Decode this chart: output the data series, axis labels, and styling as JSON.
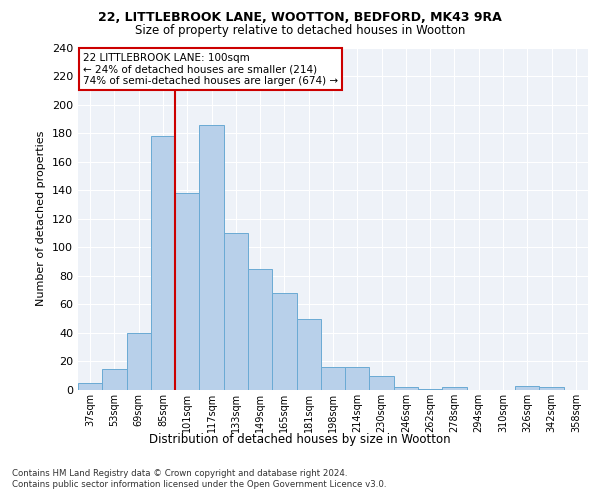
{
  "title1": "22, LITTLEBROOK LANE, WOOTTON, BEDFORD, MK43 9RA",
  "title2": "Size of property relative to detached houses in Wootton",
  "xlabel": "Distribution of detached houses by size in Wootton",
  "ylabel": "Number of detached properties",
  "categories": [
    "37sqm",
    "53sqm",
    "69sqm",
    "85sqm",
    "101sqm",
    "117sqm",
    "133sqm",
    "149sqm",
    "165sqm",
    "181sqm",
    "198sqm",
    "214sqm",
    "230sqm",
    "246sqm",
    "262sqm",
    "278sqm",
    "294sqm",
    "310sqm",
    "326sqm",
    "342sqm",
    "358sqm"
  ],
  "values": [
    5,
    15,
    40,
    178,
    138,
    186,
    110,
    85,
    68,
    50,
    16,
    16,
    10,
    2,
    1,
    2,
    0,
    0,
    3,
    2,
    0
  ],
  "bar_color": "#b8d0ea",
  "bar_edge_color": "#6aaad4",
  "vline_color": "#cc0000",
  "annotation_text": "22 LITTLEBROOK LANE: 100sqm\n← 24% of detached houses are smaller (214)\n74% of semi-detached houses are larger (674) →",
  "annotation_box_color": "#ffffff",
  "annotation_box_edge": "#cc0000",
  "ylim": [
    0,
    240
  ],
  "yticks": [
    0,
    20,
    40,
    60,
    80,
    100,
    120,
    140,
    160,
    180,
    200,
    220,
    240
  ],
  "footnote1": "Contains HM Land Registry data © Crown copyright and database right 2024.",
  "footnote2": "Contains public sector information licensed under the Open Government Licence v3.0.",
  "bg_color": "#ffffff",
  "plot_bg_color": "#eef2f8",
  "grid_color": "#ffffff"
}
